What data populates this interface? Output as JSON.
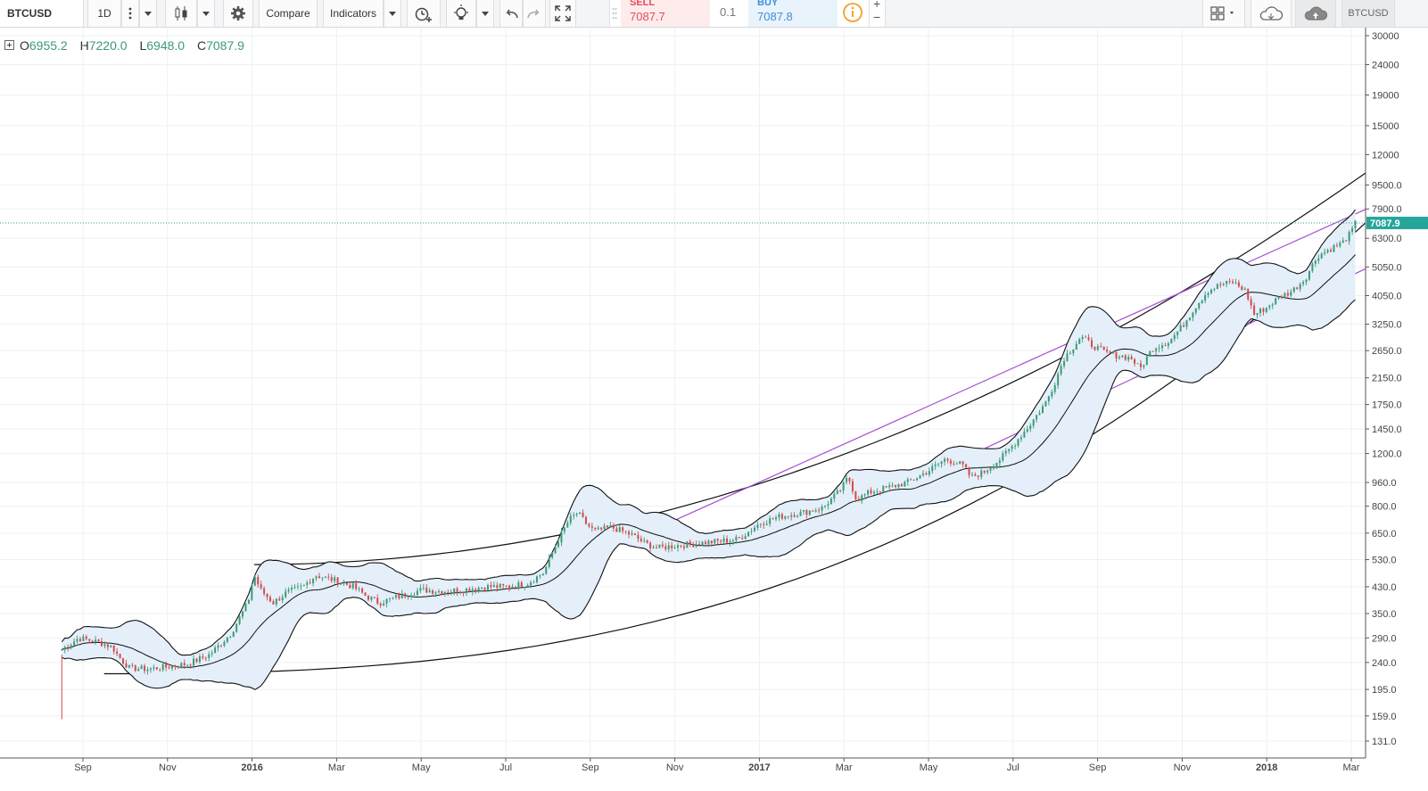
{
  "toolbar": {
    "symbol": "BTCUSD",
    "interval": "1D",
    "compare_label": "Compare",
    "indicators_label": "Indicators",
    "symbol_right": "BTCUSD"
  },
  "trade_panel": {
    "sell_label": "SELL",
    "sell_price": "7087.7",
    "spread": "0.1",
    "buy_label": "BUY",
    "buy_price": "7087.8",
    "info_icon": "info-icon"
  },
  "ohlc": {
    "o_label": "O",
    "o": "6955.2",
    "h_label": "H",
    "h": "7220.0",
    "l_label": "L",
    "l": "6948.0",
    "c_label": "C",
    "c": "7087.9"
  },
  "icons": [
    "bars-style-icon",
    "more-icon",
    "gear-icon",
    "alert-clock-icon",
    "lightbulb-icon",
    "undo-icon",
    "redo-icon",
    "fullscreen-icon",
    "layout-icon",
    "cloud-icon",
    "cloud-upload-icon",
    "expand-icon"
  ],
  "colors": {
    "up": "#3c9a75",
    "down": "#d24b4b",
    "band_fill": "#e4effa",
    "channel": "#a64fd1",
    "last_price": "#26a69a",
    "grid": "#edf0f3"
  },
  "chart_data": {
    "type": "candlestick",
    "scale": "log",
    "y_ticks": [
      "30000",
      "24000",
      "19000",
      "15000",
      "12000",
      "9500.0",
      "7900.0",
      "6300.0",
      "5050.0",
      "4050.0",
      "3250.0",
      "2650.0",
      "2150.0",
      "1750.0",
      "1450.0",
      "1200.0",
      "960.0",
      "800.0",
      "650.0",
      "530.0",
      "430.0",
      "350.0",
      "290.0",
      "240.0",
      "195.0",
      "159.0",
      "131.0"
    ],
    "x_ticks": [
      "Sep",
      "Nov",
      "2016",
      "Mar",
      "May",
      "Jul",
      "Sep",
      "Nov",
      "2017",
      "Mar",
      "May",
      "Jul",
      "Sep",
      "Nov",
      "2018",
      "Mar"
    ],
    "last_price": "7087.9",
    "series": [
      {
        "values": [
          [
            -0.5,
            265
          ],
          [
            -0.1,
            290
          ],
          [
            0.4,
            280
          ],
          [
            0.7,
            270
          ],
          [
            0.85,
            250
          ],
          [
            1.1,
            230
          ],
          [
            1.5,
            228
          ],
          [
            2.0,
            232
          ],
          [
            2.5,
            238
          ],
          [
            3.0,
            255
          ],
          [
            3.5,
            300
          ],
          [
            3.9,
            380
          ],
          [
            4.05,
            470
          ],
          [
            4.2,
            420
          ],
          [
            4.5,
            380
          ],
          [
            4.8,
            410
          ],
          [
            5.2,
            430
          ],
          [
            5.5,
            470
          ],
          [
            6.0,
            450
          ],
          [
            6.4,
            430
          ],
          [
            6.7,
            400
          ],
          [
            7.0,
            380
          ],
          [
            7.5,
            400
          ],
          [
            8.0,
            420
          ],
          [
            8.5,
            415
          ],
          [
            9.0,
            420
          ],
          [
            9.5,
            430
          ],
          [
            10.0,
            430
          ],
          [
            10.5,
            440
          ],
          [
            10.9,
            480
          ],
          [
            11.2,
            600
          ],
          [
            11.5,
            720
          ],
          [
            11.7,
            760
          ],
          [
            11.9,
            700
          ],
          [
            12.1,
            660
          ],
          [
            12.5,
            680
          ],
          [
            13.0,
            640
          ],
          [
            13.3,
            600
          ],
          [
            13.6,
            580
          ],
          [
            14.0,
            590
          ],
          [
            14.5,
            600
          ],
          [
            15.0,
            610
          ],
          [
            15.5,
            620
          ],
          [
            16.0,
            700
          ],
          [
            16.5,
            740
          ],
          [
            17.0,
            760
          ],
          [
            17.5,
            790
          ],
          [
            17.9,
            900
          ],
          [
            18.1,
            1000
          ],
          [
            18.2,
            920
          ],
          [
            18.3,
            840
          ],
          [
            18.6,
            890
          ],
          [
            19.0,
            920
          ],
          [
            19.5,
            960
          ],
          [
            20.0,
            1050
          ],
          [
            20.4,
            1150
          ],
          [
            20.8,
            1100
          ],
          [
            21.0,
            1000
          ],
          [
            21.3,
            1040
          ],
          [
            21.7,
            1150
          ],
          [
            22.0,
            1280
          ],
          [
            22.4,
            1500
          ],
          [
            22.8,
            1800
          ],
          [
            23.0,
            2100
          ],
          [
            23.2,
            2500
          ],
          [
            23.4,
            2700
          ],
          [
            23.6,
            2950
          ],
          [
            23.9,
            2750
          ],
          [
            24.2,
            2600
          ],
          [
            24.5,
            2550
          ],
          [
            24.8,
            2500
          ],
          [
            25.0,
            2300
          ],
          [
            25.3,
            2700
          ],
          [
            25.7,
            2850
          ],
          [
            26.0,
            3200
          ],
          [
            26.3,
            3700
          ],
          [
            26.6,
            4200
          ],
          [
            26.9,
            4400
          ],
          [
            27.2,
            4500
          ],
          [
            27.5,
            4200
          ],
          [
            27.7,
            3500
          ],
          [
            28.0,
            3700
          ],
          [
            28.3,
            4000
          ],
          [
            28.6,
            4200
          ],
          [
            28.9,
            4600
          ],
          [
            29.2,
            5500
          ],
          [
            29.5,
            5800
          ],
          [
            29.8,
            6100
          ],
          [
            30.0,
            6600
          ],
          [
            30.1,
            7087.9
          ]
        ]
      }
    ],
    "bands": "Bollinger Bands",
    "trend_lines": [
      "curved upper channel",
      "curved lower channel",
      "purple parallel channel"
    ]
  }
}
